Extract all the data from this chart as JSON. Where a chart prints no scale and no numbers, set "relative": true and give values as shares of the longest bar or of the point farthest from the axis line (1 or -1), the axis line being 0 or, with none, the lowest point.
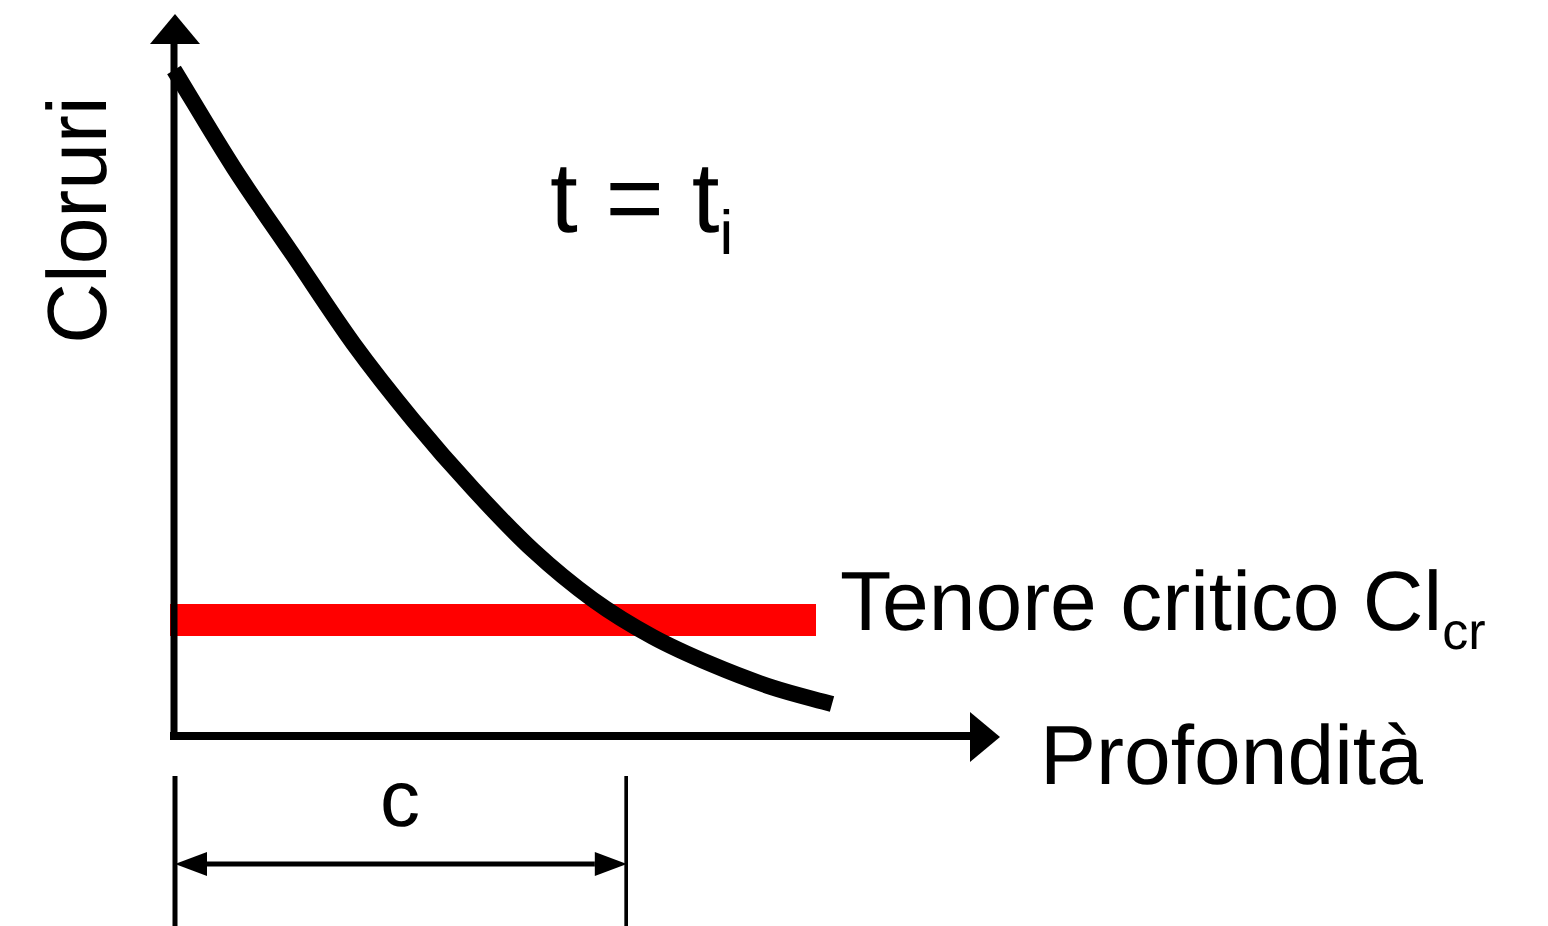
{
  "chart_data": {
    "type": "line",
    "relative": true,
    "xlabel": "Profondità",
    "ylabel": "Cloruri",
    "categories": [
      null,
      null,
      null,
      null,
      null,
      null,
      null,
      null,
      null,
      null,
      null,
      null
    ],
    "series": [
      {
        "color": "#000000",
        "values": [
          1,
          0.853,
          0.721,
          0.589,
          0.474,
          0.371,
          0.279,
          0.205,
          0.149,
          0.107,
          0.073,
          0.048
        ]
      }
    ],
    "ref_lines": [
      {
        "axis": "y",
        "value": 0.174,
        "label": "Tenore critico Cl$_{cr}$",
        "color": "#ff0000"
      }
    ],
    "annotations": [
      "t = t$_{i}$",
      "c"
    ]
  }
}
